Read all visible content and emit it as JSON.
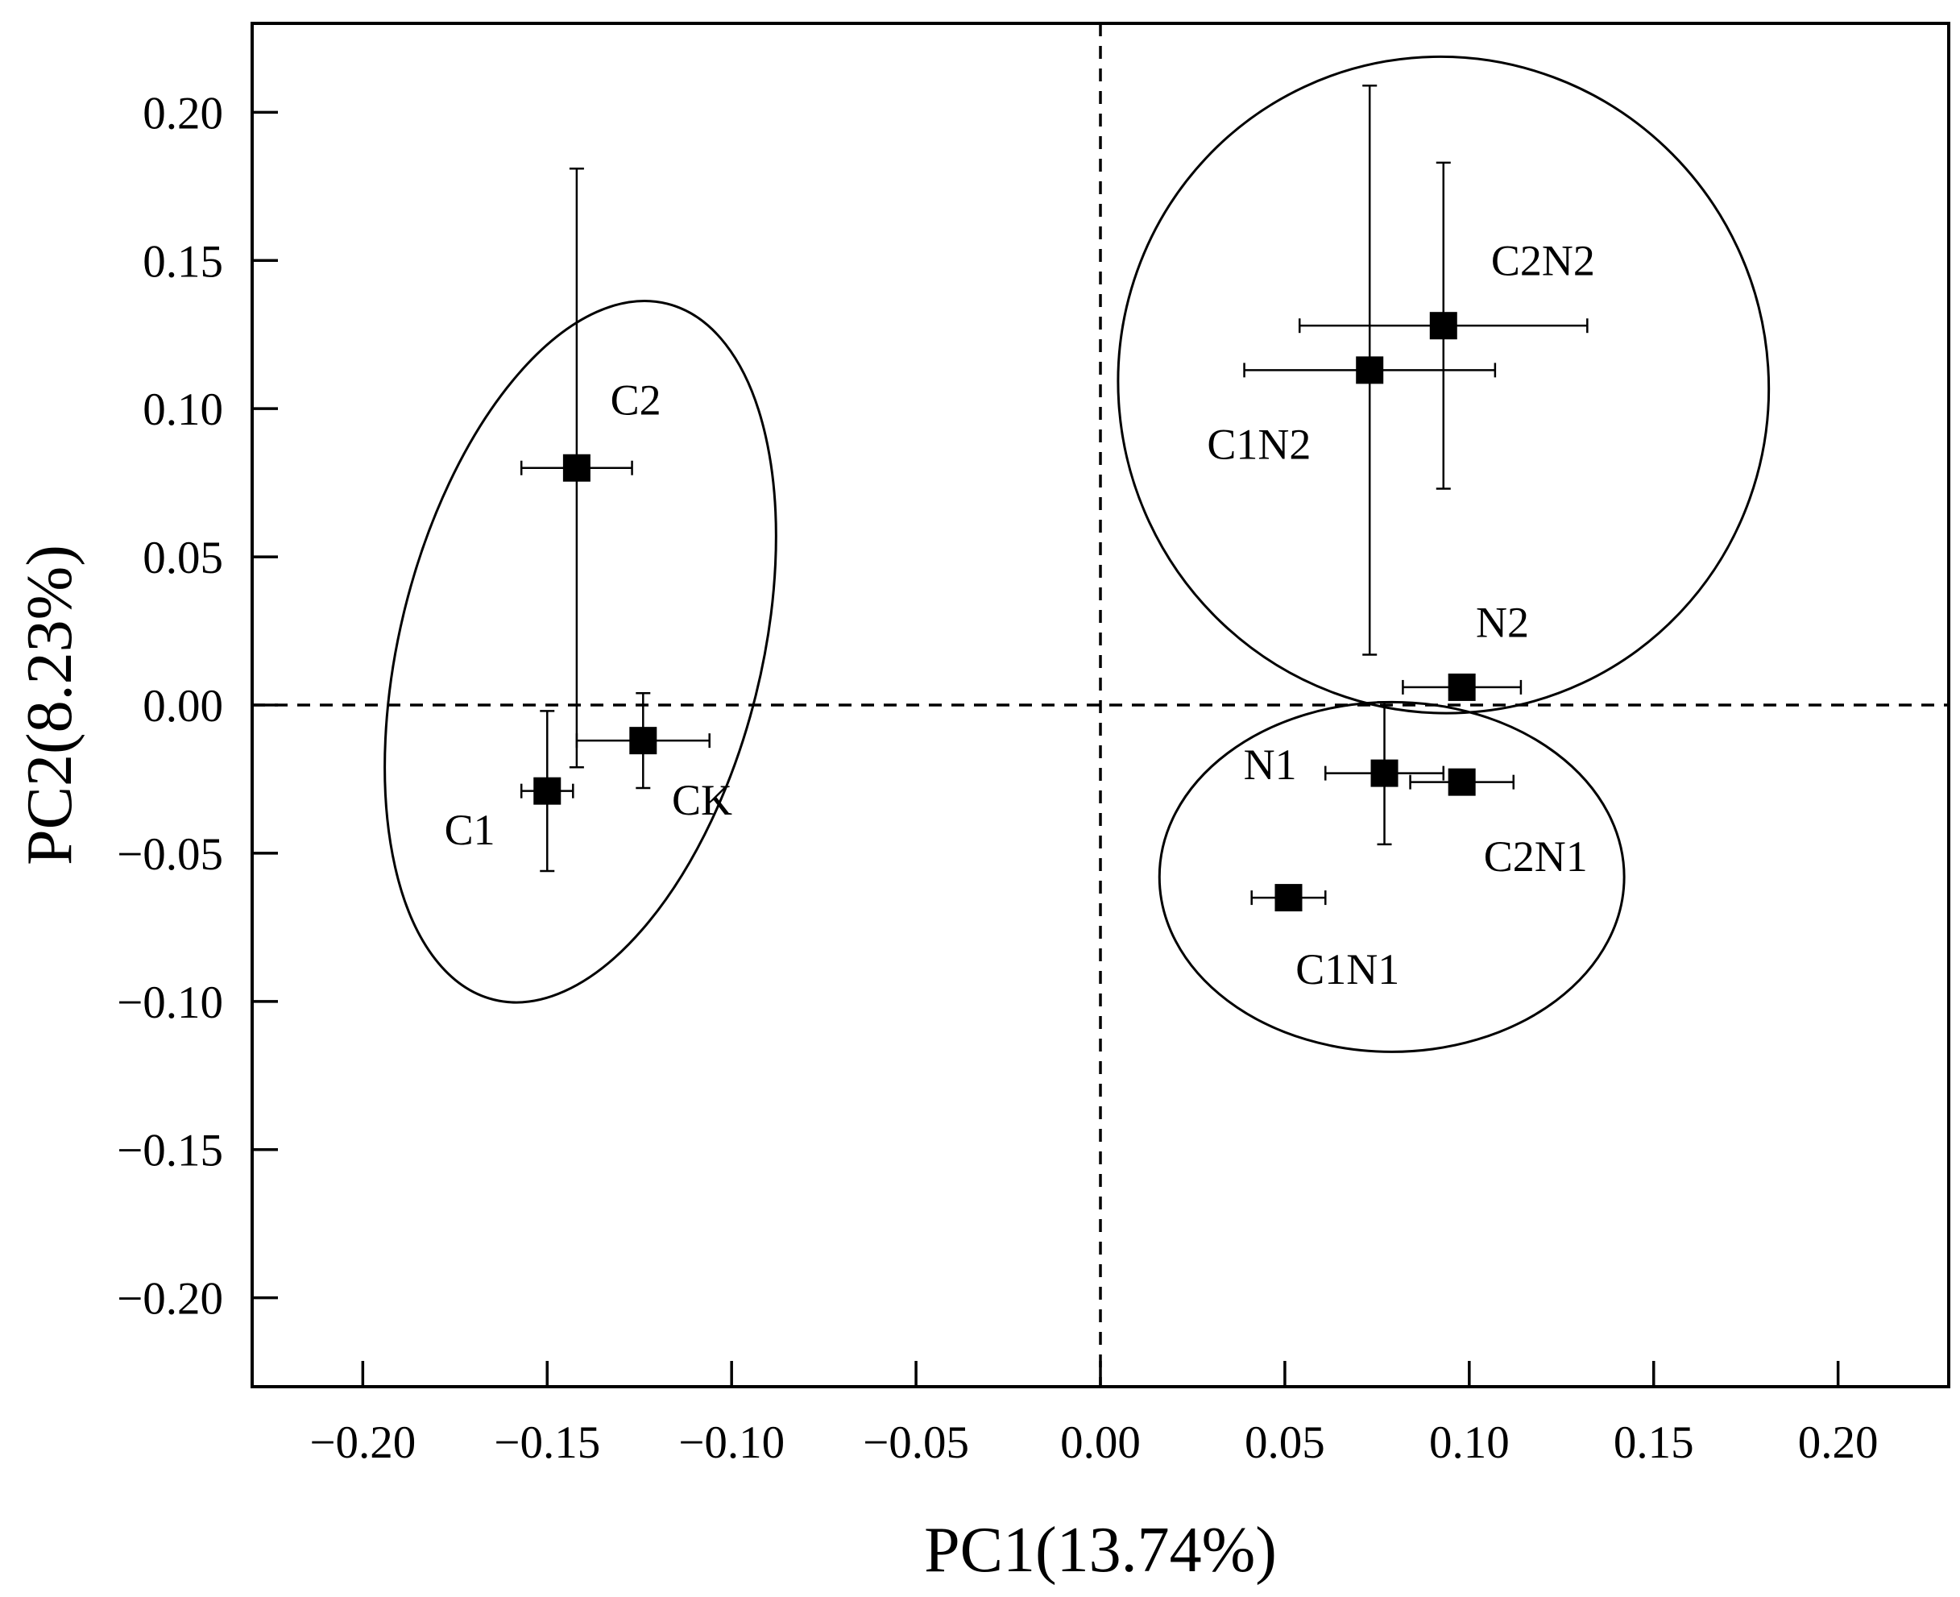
{
  "chart_data": {
    "type": "scatter",
    "title": "",
    "xlabel": "PC1(13.74%)",
    "ylabel": "PC2(8.23%)",
    "xlim": [
      -0.23,
      0.23
    ],
    "ylim": [
      -0.23,
      0.23
    ],
    "xticks": [
      -0.2,
      -0.15,
      -0.1,
      -0.05,
      0.0,
      0.05,
      0.1,
      0.15,
      0.2
    ],
    "yticks": [
      -0.2,
      -0.15,
      -0.1,
      -0.05,
      0.0,
      0.05,
      0.1,
      0.15,
      0.2
    ],
    "xtick_labels": [
      "−0.20",
      "−0.15",
      "−0.10",
      "−0.05",
      "0.00",
      "0.05",
      "0.10",
      "0.15",
      "0.20"
    ],
    "ytick_labels": [
      "−0.20",
      "−0.15",
      "−0.10",
      "−0.05",
      "0.00",
      "0.05",
      "0.10",
      "0.15",
      "0.20"
    ],
    "reference_lines": {
      "x": 0.0,
      "y": 0.0,
      "style": "dashed"
    },
    "points": [
      {
        "name": "C2",
        "x": -0.142,
        "y": 0.08,
        "xerr": 0.015,
        "yerr": 0.101
      },
      {
        "name": "CK",
        "x": -0.124,
        "y": -0.012,
        "xerr": 0.018,
        "yerr": 0.016
      },
      {
        "name": "C1",
        "x": -0.15,
        "y": -0.029,
        "xerr": 0.007,
        "yerr": 0.027
      },
      {
        "name": "C1N2",
        "x": 0.073,
        "y": 0.113,
        "xerr": 0.034,
        "yerr": 0.096
      },
      {
        "name": "C2N2",
        "x": 0.093,
        "y": 0.128,
        "xerr": 0.039,
        "yerr": 0.055
      },
      {
        "name": "N2",
        "x": 0.098,
        "y": 0.006,
        "xerr": 0.016,
        "yerr": 0.0
      },
      {
        "name": "N1",
        "x": 0.077,
        "y": -0.023,
        "xerr": 0.016,
        "yerr": 0.024
      },
      {
        "name": "C2N1",
        "x": 0.098,
        "y": -0.026,
        "xerr": 0.014,
        "yerr": 0.0
      },
      {
        "name": "C1N1",
        "x": 0.051,
        "y": -0.065,
        "xerr": 0.01,
        "yerr": 0.003
      }
    ],
    "point_labels": [
      {
        "text": "C2",
        "x": -0.126,
        "y": 0.098
      },
      {
        "text": "CK",
        "x": -0.108,
        "y": -0.037
      },
      {
        "text": "C1",
        "x": -0.171,
        "y": -0.047
      },
      {
        "text": "C1N2",
        "x": 0.043,
        "y": 0.083
      },
      {
        "text": "C2N2",
        "x": 0.12,
        "y": 0.145
      },
      {
        "text": "N2",
        "x": 0.109,
        "y": 0.023
      },
      {
        "text": "N1",
        "x": 0.046,
        "y": -0.025
      },
      {
        "text": "C2N1",
        "x": 0.118,
        "y": -0.056
      },
      {
        "text": "C1N1",
        "x": 0.067,
        "y": -0.094
      }
    ],
    "groups": [
      {
        "name": "C1, C2, CK",
        "cx": -0.141,
        "cy": 0.018,
        "rx": 0.049,
        "ry": 0.121,
        "angle_deg": 14
      },
      {
        "name": "C1N2, C2N2, N2",
        "cx": 0.093,
        "cy": 0.108,
        "rx": 0.088,
        "ry": 0.111,
        "angle_deg": -25
      },
      {
        "name": "N1, C2N1, C1N1",
        "cx": 0.079,
        "cy": -0.058,
        "rx": 0.063,
        "ry": 0.059,
        "angle_deg": 0
      }
    ]
  }
}
